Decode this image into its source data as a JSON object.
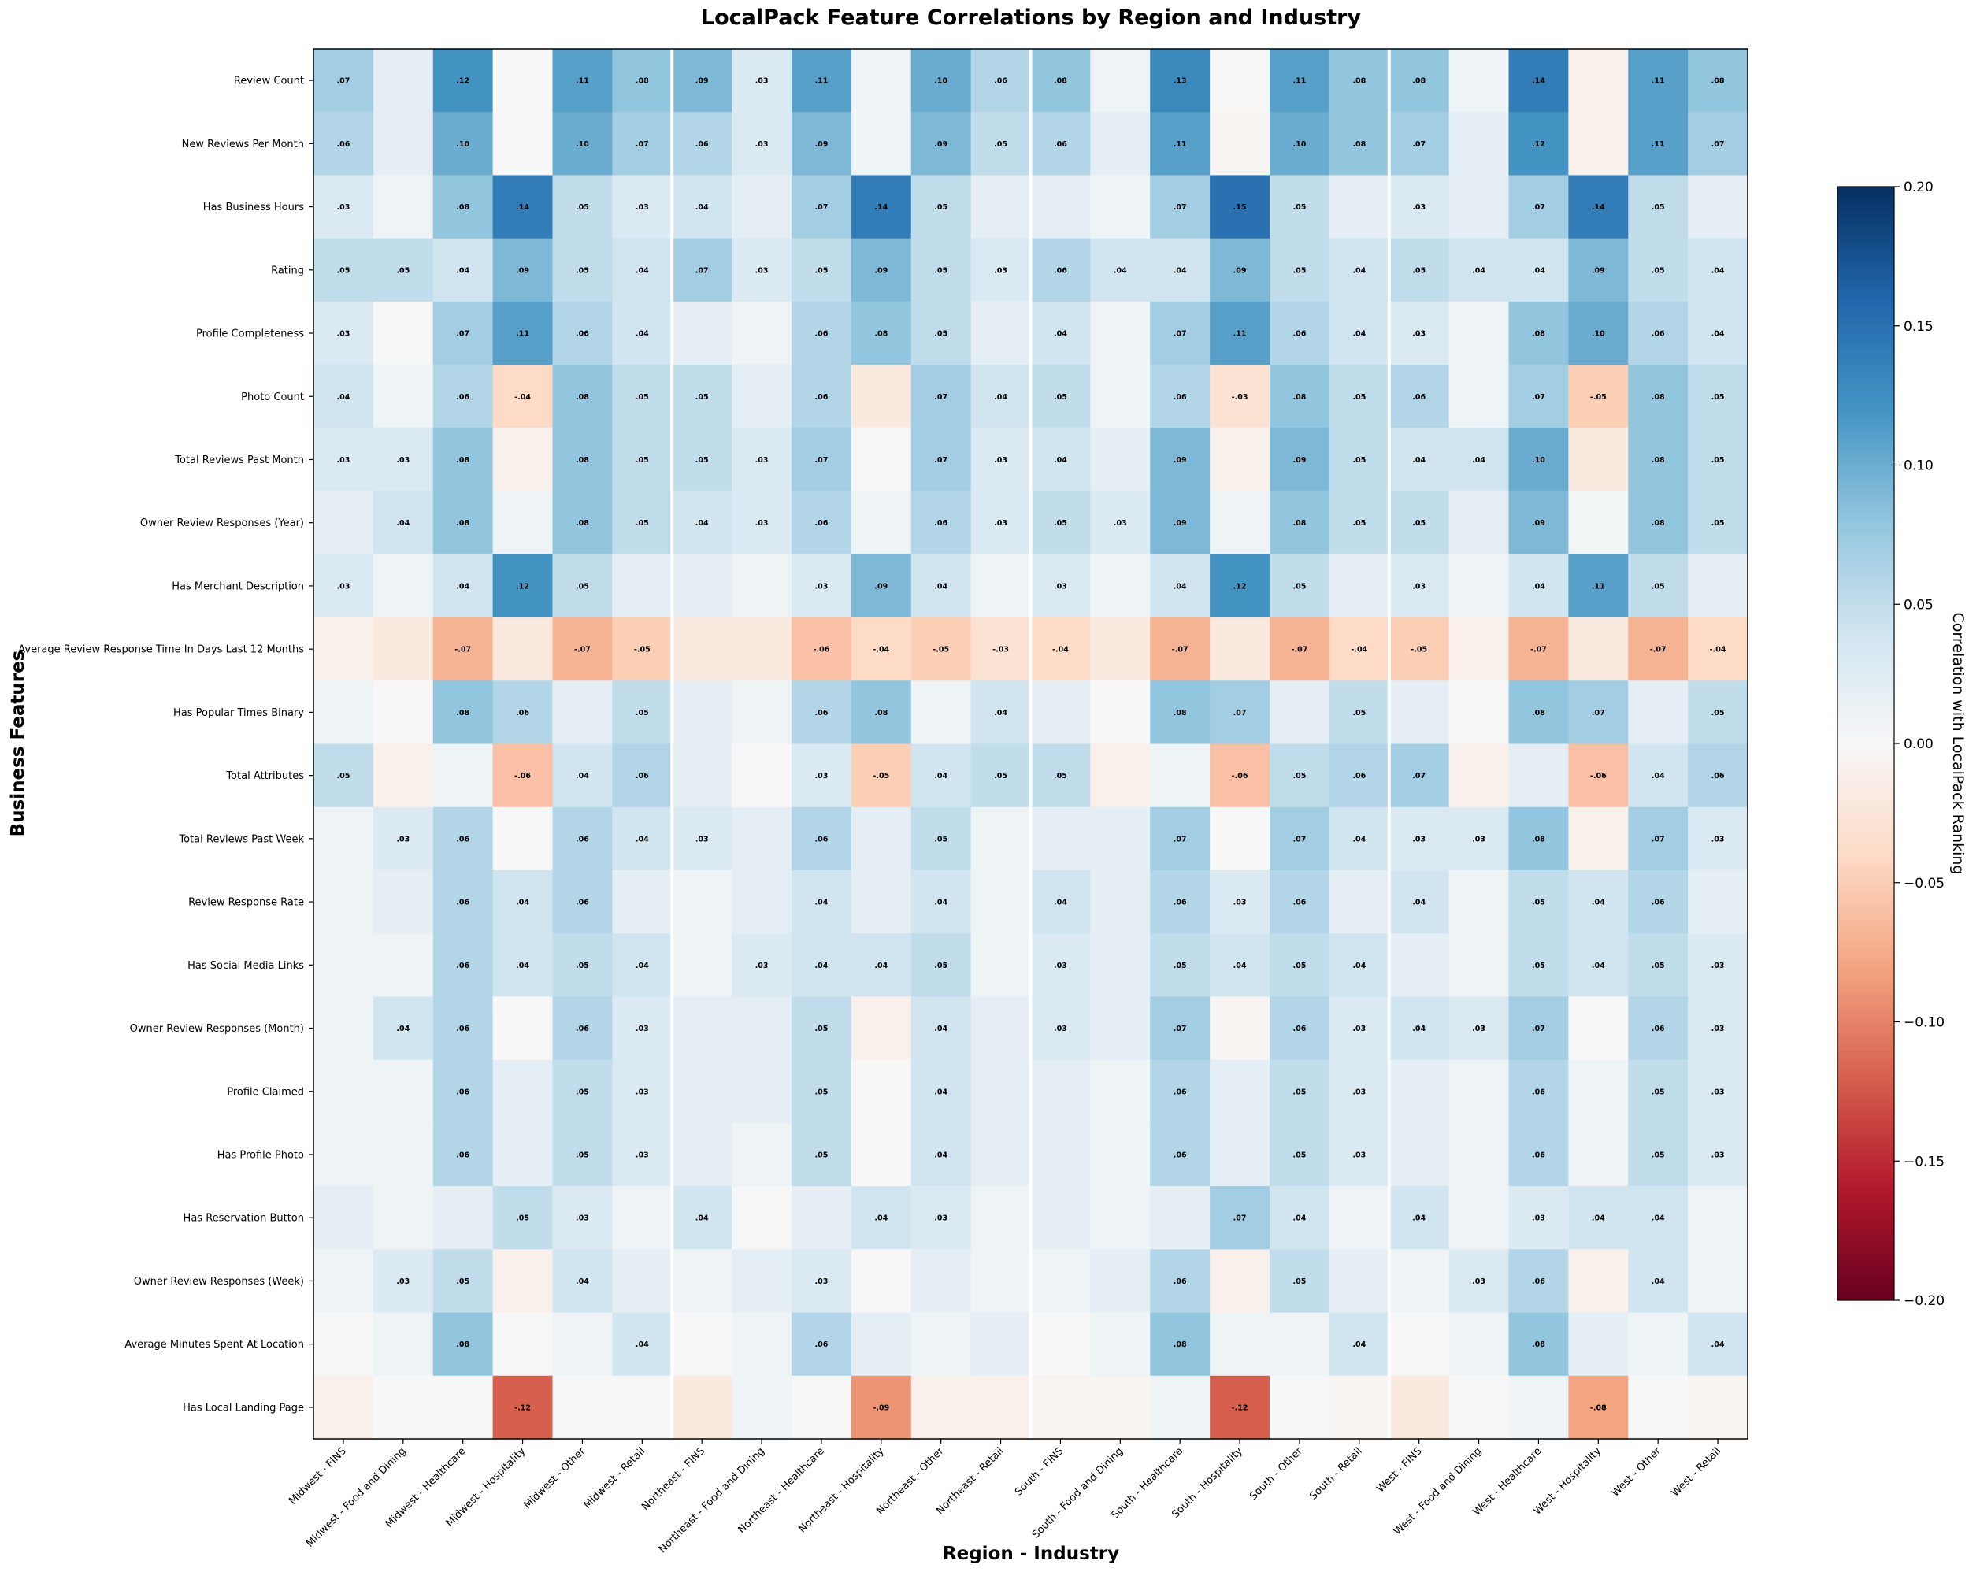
{
  "chart_data": {
    "type": "heatmap",
    "title": "LocalPack Feature Correlations by Region and Industry",
    "xlabel": "Region - Industry",
    "ylabel": "Business Features",
    "colorbar_label": "Correlation with LocalPack Ranking",
    "colormap": "RdBu",
    "vlim": [
      -0.2,
      0.2
    ],
    "colorbar_ticks": [
      "0.20",
      "0.15",
      "0.10",
      "0.05",
      "0.00",
      "−0.05",
      "−0.10",
      "−0.15",
      "−0.20"
    ],
    "colorbar_tick_values": [
      0.2,
      0.15,
      0.1,
      0.05,
      0.0,
      -0.05,
      -0.1,
      -0.15,
      -0.2
    ],
    "annotation_threshold": 0.03,
    "region_group_size": 6,
    "columns": [
      "Midwest - FINS",
      "Midwest - Food and Dining",
      "Midwest - Healthcare",
      "Midwest - Hospitality",
      "Midwest - Other",
      "Midwest - Retail",
      "Northeast - FINS",
      "Northeast - Food and Dining",
      "Northeast - Healthcare",
      "Northeast - Hospitality",
      "Northeast - Other",
      "Northeast - Retail",
      "South - FINS",
      "South - Food and Dining",
      "South - Healthcare",
      "South - Hospitality",
      "South - Other",
      "South - Retail",
      "West - FINS",
      "West - Food and Dining",
      "West - Healthcare",
      "West - Hospitality",
      "West - Other",
      "West - Retail"
    ],
    "rows": [
      "Review Count",
      "New Reviews Per Month",
      "Has Business Hours",
      "Rating",
      "Profile Completeness",
      "Photo Count",
      "Total Reviews Past Month",
      "Owner Review Responses (Year)",
      "Has Merchant Description",
      "Average Review Response Time In Days Last 12 Months",
      "Has Popular Times Binary",
      "Total Attributes",
      "Total Reviews Past Week",
      "Review Response Rate",
      "Has Social Media Links",
      "Owner Review Responses (Month)",
      "Profile Claimed",
      "Has Profile Photo",
      "Has Reservation Button",
      "Owner Review Responses (Week)",
      "Average Minutes Spent At Location",
      "Has Local Landing Page"
    ],
    "values": [
      [
        0.07,
        0.02,
        0.12,
        0,
        0.11,
        0.08,
        0.09,
        0.03,
        0.11,
        0.01,
        0.1,
        0.06,
        0.08,
        0.01,
        0.13,
        0,
        0.11,
        0.08,
        0.08,
        0.01,
        0.14,
        -0.01,
        0.11,
        0.08
      ],
      [
        0.06,
        0.02,
        0.1,
        0,
        0.1,
        0.07,
        0.06,
        0.03,
        0.09,
        0.01,
        0.09,
        0.05,
        0.06,
        0.02,
        0.11,
        -0.005,
        0.1,
        0.08,
        0.07,
        0.02,
        0.12,
        -0.01,
        0.11,
        0.07
      ],
      [
        0.03,
        0.01,
        0.08,
        0.14,
        0.05,
        0.03,
        0.04,
        0.02,
        0.07,
        0.14,
        0.05,
        0.02,
        0.02,
        0.01,
        0.07,
        0.15,
        0.05,
        0.02,
        0.03,
        0.02,
        0.07,
        0.14,
        0.05,
        0.02
      ],
      [
        0.05,
        0.05,
        0.04,
        0.09,
        0.05,
        0.04,
        0.07,
        0.03,
        0.05,
        0.09,
        0.05,
        0.03,
        0.06,
        0.04,
        0.04,
        0.09,
        0.05,
        0.04,
        0.05,
        0.04,
        0.04,
        0.09,
        0.05,
        0.04
      ],
      [
        0.03,
        0,
        0.07,
        0.11,
        0.06,
        0.04,
        0.02,
        0.01,
        0.06,
        0.08,
        0.05,
        0.02,
        0.04,
        0.01,
        0.07,
        0.11,
        0.06,
        0.04,
        0.03,
        0.01,
        0.08,
        0.1,
        0.06,
        0.04
      ],
      [
        0.04,
        0.01,
        0.06,
        -0.04,
        0.08,
        0.05,
        0.05,
        0.02,
        0.06,
        -0.02,
        0.07,
        0.04,
        0.05,
        0.01,
        0.06,
        -0.03,
        0.08,
        0.05,
        0.06,
        0.01,
        0.07,
        -0.05,
        0.08,
        0.05
      ],
      [
        0.03,
        0.03,
        0.08,
        -0.01,
        0.08,
        0.05,
        0.05,
        0.03,
        0.07,
        0,
        0.07,
        0.03,
        0.04,
        0.02,
        0.09,
        -0.01,
        0.09,
        0.05,
        0.04,
        0.04,
        0.1,
        -0.02,
        0.08,
        0.05
      ],
      [
        0.02,
        0.04,
        0.08,
        0.01,
        0.08,
        0.05,
        0.04,
        0.03,
        0.06,
        0.01,
        0.06,
        0.03,
        0.05,
        0.03,
        0.09,
        0.01,
        0.08,
        0.05,
        0.05,
        0.02,
        0.09,
        0.005,
        0.08,
        0.05
      ],
      [
        0.03,
        0.01,
        0.04,
        0.12,
        0.05,
        0.02,
        0.02,
        0.01,
        0.03,
        0.09,
        0.04,
        0.01,
        0.03,
        0.01,
        0.04,
        0.12,
        0.05,
        0.02,
        0.03,
        0.01,
        0.04,
        0.11,
        0.05,
        0.02
      ],
      [
        -0.01,
        -0.02,
        -0.07,
        -0.02,
        -0.07,
        -0.05,
        -0.02,
        -0.02,
        -0.06,
        -0.04,
        -0.05,
        -0.03,
        -0.04,
        -0.02,
        -0.07,
        -0.02,
        -0.07,
        -0.04,
        -0.05,
        -0.01,
        -0.07,
        -0.02,
        -0.07,
        -0.04
      ],
      [
        0.01,
        0,
        0.08,
        0.06,
        0.02,
        0.05,
        0.02,
        0.01,
        0.06,
        0.08,
        0.01,
        0.04,
        0.02,
        0,
        0.08,
        0.07,
        0.02,
        0.05,
        0.02,
        0,
        0.08,
        0.07,
        0.02,
        0.05
      ],
      [
        0.05,
        -0.01,
        0.01,
        -0.06,
        0.04,
        0.06,
        0.02,
        0,
        0.03,
        -0.05,
        0.04,
        0.05,
        0.05,
        -0.01,
        0.01,
        -0.06,
        0.05,
        0.06,
        0.07,
        -0.01,
        0.02,
        -0.06,
        0.04,
        0.06
      ],
      [
        0.01,
        0.03,
        0.06,
        0,
        0.06,
        0.04,
        0.03,
        0.02,
        0.06,
        0.02,
        0.05,
        0.01,
        0.02,
        0.02,
        0.07,
        0,
        0.07,
        0.04,
        0.03,
        0.03,
        0.08,
        -0.01,
        0.07,
        0.03
      ],
      [
        0.01,
        0.02,
        0.06,
        0.04,
        0.06,
        0.02,
        0.01,
        0.02,
        0.04,
        0.02,
        0.04,
        0.01,
        0.04,
        0.02,
        0.06,
        0.03,
        0.06,
        0.02,
        0.04,
        0.01,
        0.05,
        0.04,
        0.06,
        0.02
      ],
      [
        0.01,
        0.01,
        0.06,
        0.04,
        0.05,
        0.04,
        0.01,
        0.03,
        0.04,
        0.04,
        0.05,
        0.01,
        0.03,
        0.02,
        0.05,
        0.04,
        0.05,
        0.04,
        0.02,
        0.01,
        0.05,
        0.04,
        0.05,
        0.03
      ],
      [
        0.01,
        0.04,
        0.06,
        0,
        0.06,
        0.03,
        0.02,
        0.02,
        0.05,
        -0.01,
        0.04,
        0.02,
        0.03,
        0.02,
        0.07,
        -0.005,
        0.06,
        0.03,
        0.04,
        0.03,
        0.07,
        0,
        0.06,
        0.03
      ],
      [
        0.01,
        0.01,
        0.06,
        0.02,
        0.05,
        0.03,
        0.02,
        0.02,
        0.05,
        0,
        0.04,
        0.02,
        0.02,
        0.01,
        0.06,
        0.02,
        0.05,
        0.03,
        0.02,
        0.01,
        0.06,
        0.01,
        0.05,
        0.03
      ],
      [
        0.01,
        0.01,
        0.06,
        0.02,
        0.05,
        0.03,
        0.02,
        0.01,
        0.05,
        0,
        0.04,
        0.02,
        0.02,
        0.01,
        0.06,
        0.02,
        0.05,
        0.03,
        0.02,
        0.01,
        0.06,
        0.01,
        0.05,
        0.03
      ],
      [
        0.02,
        0.01,
        0.02,
        0.05,
        0.03,
        0.01,
        0.04,
        0,
        0.02,
        0.04,
        0.03,
        0.01,
        0.02,
        0.01,
        0.02,
        0.07,
        0.04,
        0.01,
        0.04,
        0.01,
        0.03,
        0.04,
        0.04,
        0.01
      ],
      [
        0.01,
        0.03,
        0.05,
        -0.01,
        0.04,
        0.02,
        0.01,
        0.02,
        0.03,
        0,
        0.02,
        0.01,
        0.01,
        0.02,
        0.06,
        -0.01,
        0.05,
        0.02,
        0.01,
        0.03,
        0.06,
        -0.01,
        0.04,
        0.01
      ],
      [
        0,
        0.01,
        0.08,
        0,
        0.01,
        0.04,
        0,
        0.01,
        0.06,
        0.02,
        0.01,
        0.02,
        0,
        0.01,
        0.08,
        0.01,
        0.01,
        0.04,
        0,
        0.01,
        0.08,
        0.02,
        0.01,
        0.04
      ],
      [
        -0.01,
        0,
        0,
        -0.12,
        0,
        0,
        -0.02,
        0.01,
        0,
        -0.09,
        -0.01,
        -0.01,
        -0.005,
        -0.005,
        0.01,
        -0.12,
        0,
        -0.005,
        -0.02,
        0,
        0.01,
        -0.08,
        0,
        -0.005
      ]
    ]
  }
}
